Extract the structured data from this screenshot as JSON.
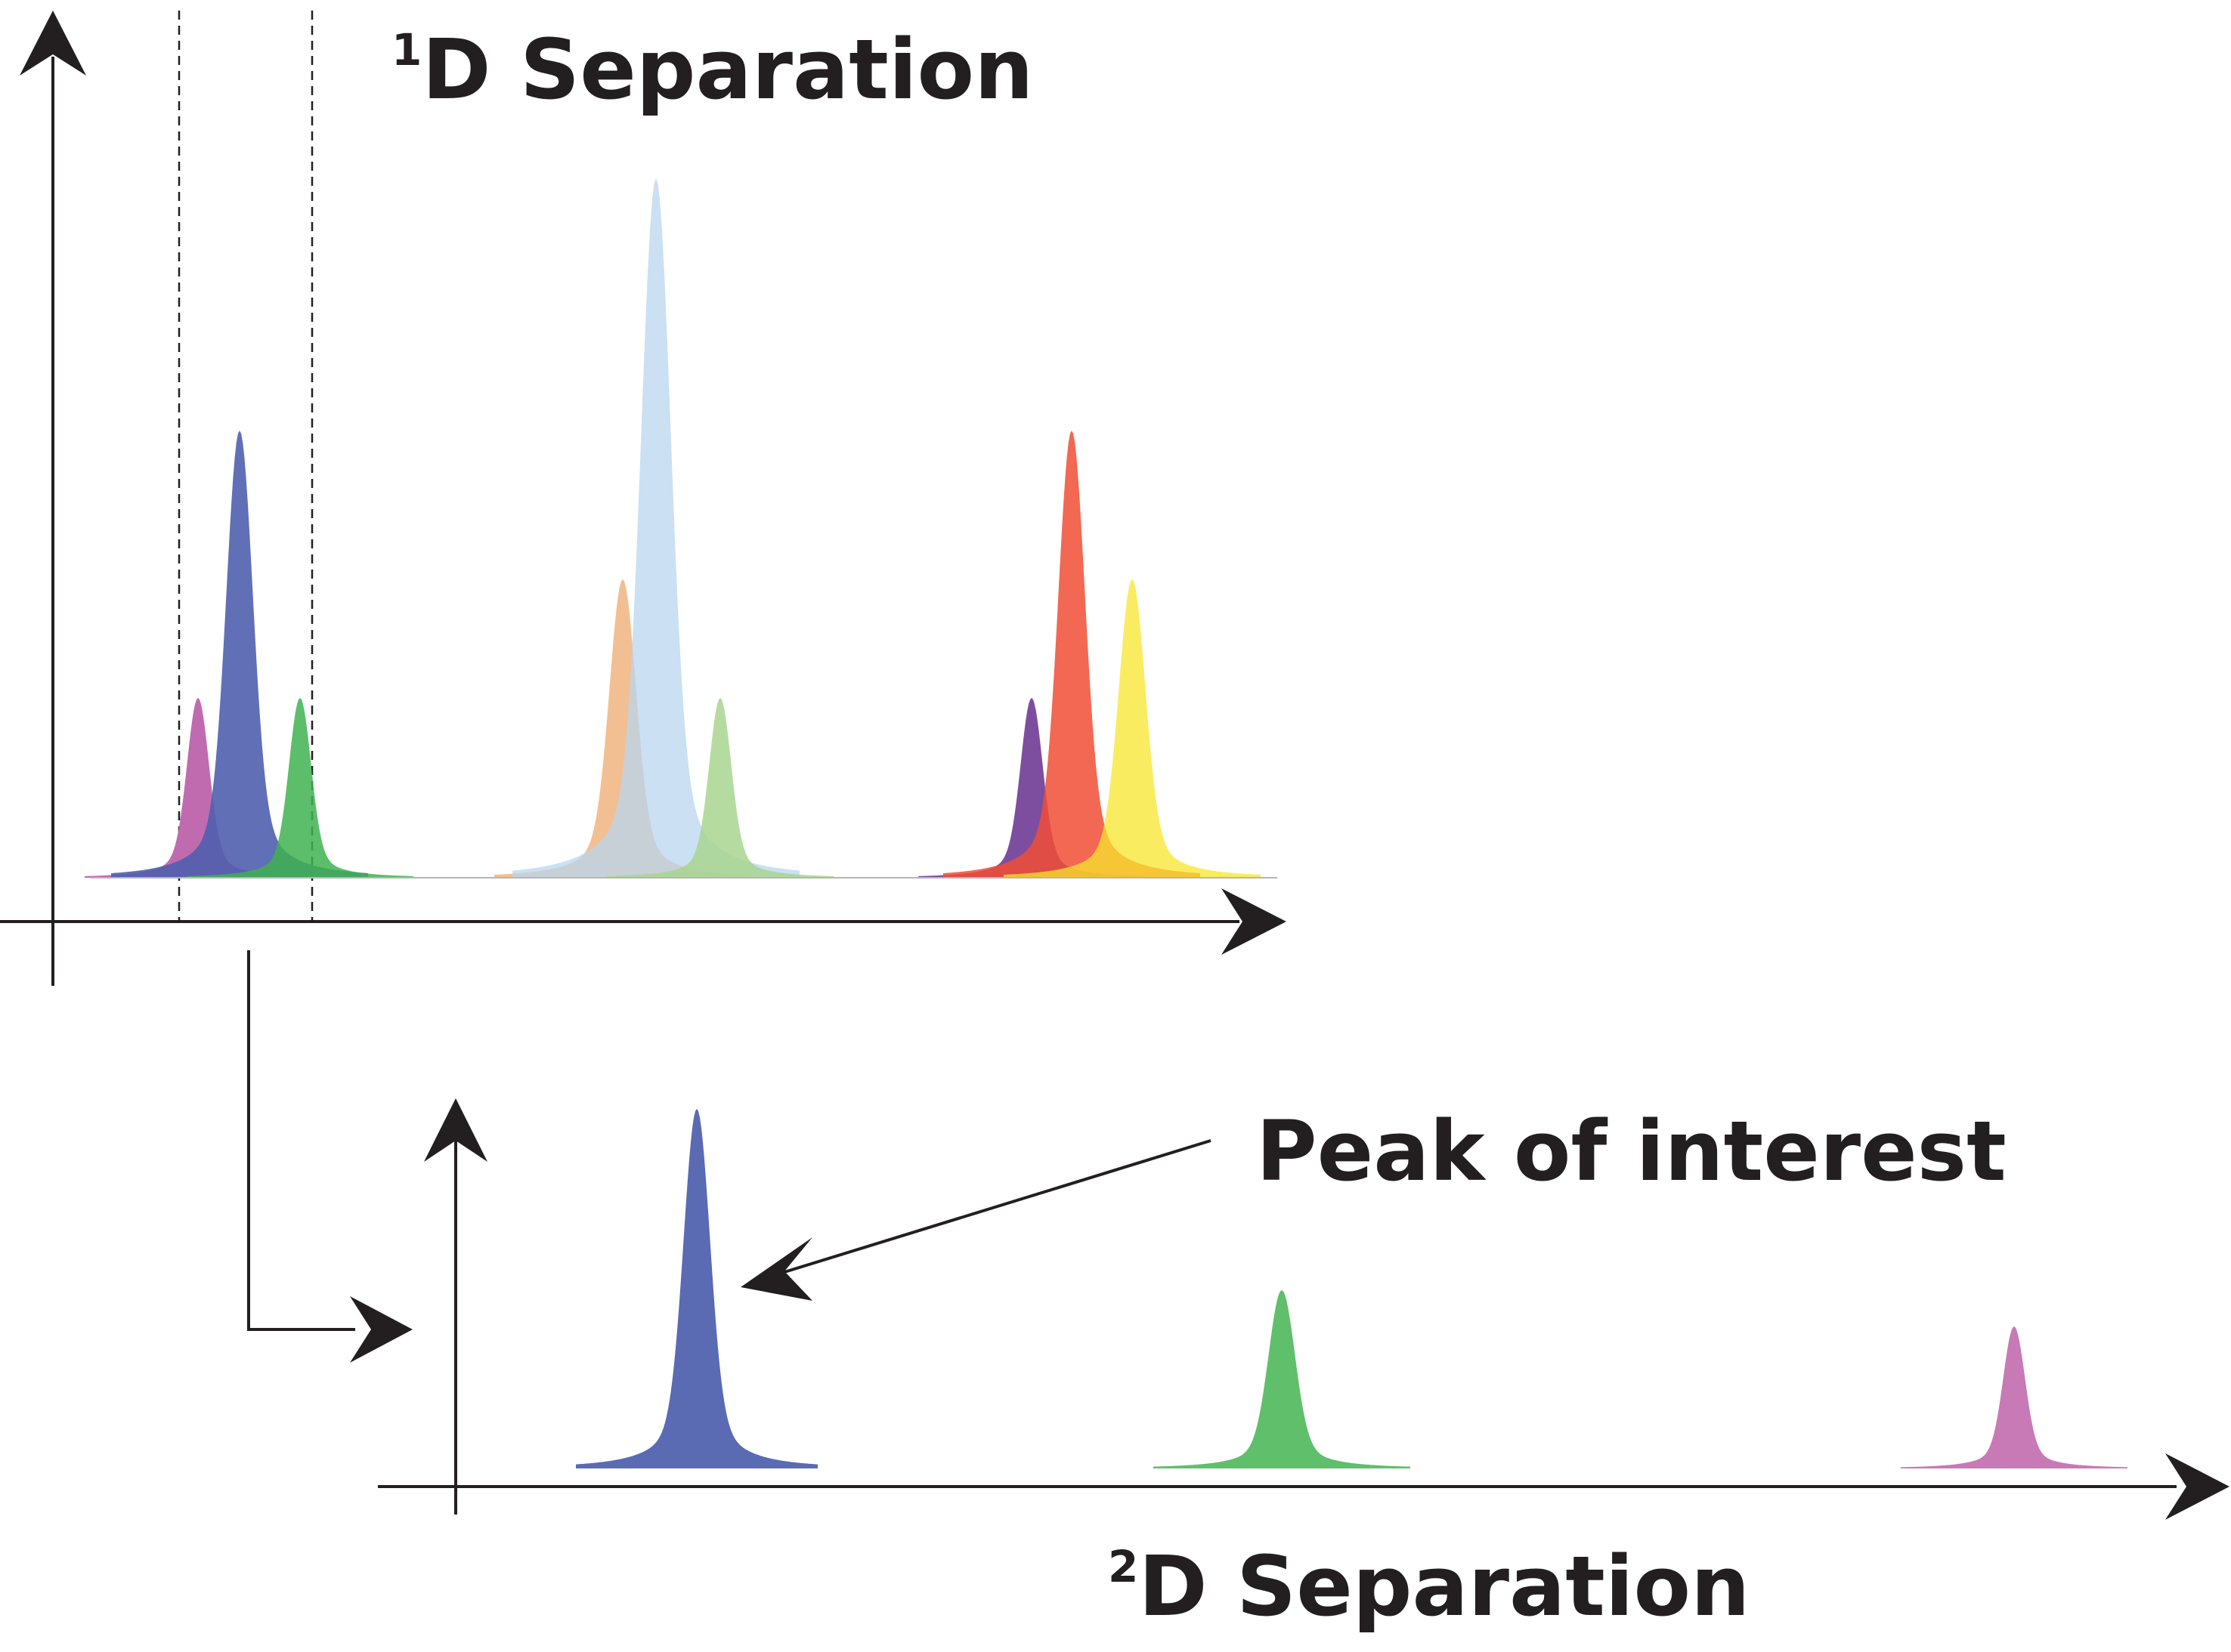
{
  "diagram": {
    "labels": {
      "first_dim_superscript": "1",
      "first_dim_text": "D Separation",
      "second_dim_superscript": "2",
      "second_dim_text": "D Separation",
      "callout": "Peak of interest"
    },
    "first_dimension": {
      "peaks": [
        {
          "name": "peak-pink",
          "color": "#c06bb0",
          "opacity": 1.0
        },
        {
          "name": "peak-blue",
          "color": "#4f5fae",
          "opacity": 0.9
        },
        {
          "name": "peak-green",
          "color": "#3fb151",
          "opacity": 0.85
        },
        {
          "name": "peak-orange",
          "color": "#f0b47f",
          "opacity": 0.85
        },
        {
          "name": "peak-lightblue",
          "color": "#b9d5ee",
          "opacity": 0.75
        },
        {
          "name": "peak-lightgreen",
          "color": "#a9d590",
          "opacity": 0.85
        },
        {
          "name": "peak-purple",
          "color": "#7d4ea0",
          "opacity": 1.0
        },
        {
          "name": "peak-red",
          "color": "#f04e35",
          "opacity": 0.85
        },
        {
          "name": "peak-yellow",
          "color": "#f7e52c",
          "opacity": 0.75
        }
      ]
    },
    "second_dimension": {
      "peaks": [
        {
          "name": "peak-blue-2d",
          "color": "#5a6ab3",
          "opacity": 1.0
        },
        {
          "name": "peak-green-2d",
          "color": "#5fbf6b",
          "opacity": 1.0
        },
        {
          "name": "peak-pink-2d",
          "color": "#c77ab5",
          "opacity": 1.0
        }
      ]
    },
    "colors": {
      "ink": "#231f20"
    }
  }
}
